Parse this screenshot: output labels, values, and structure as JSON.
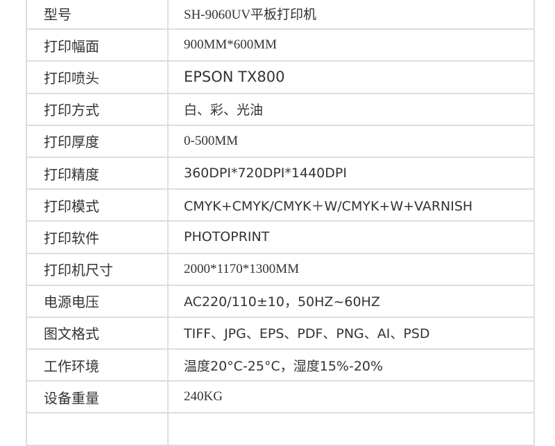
{
  "rows": [
    {
      "label": "型号",
      "value": "SH-9060UV平板打印机"
    },
    {
      "label": "打印幅面",
      "value": "900MM*600MM"
    },
    {
      "label": "打印喷头",
      "value": "EPSON TX800"
    },
    {
      "label": "打印方式",
      "value": "白、彩、光油"
    },
    {
      "label": "打印厚度",
      "value": "0-500MM"
    },
    {
      "label": "打印精度",
      "value": "360DPI*720DPI*1440DPI"
    },
    {
      "label": "打印模式",
      "value": "CMYK+CMYK/CMYK＋W/CMYK+W+VARNISH"
    },
    {
      "label": "打印软件",
      "value": "PHOTOPRINT"
    },
    {
      "label": "打印机尺寸",
      "value": "2000*1170*1300MM"
    },
    {
      "label": "电源电压",
      "value": "AC220/110±10，50HZ~60HZ"
    },
    {
      "label": "图文格式",
      "value": "TIFF、JPG、EPS、PDF、PNG、AI、PSD"
    },
    {
      "label": "工作环境",
      "value": "温度20°C-25°C，湿度15%-20%"
    },
    {
      "label": "设备重量",
      "value": "240KG"
    }
  ]
}
